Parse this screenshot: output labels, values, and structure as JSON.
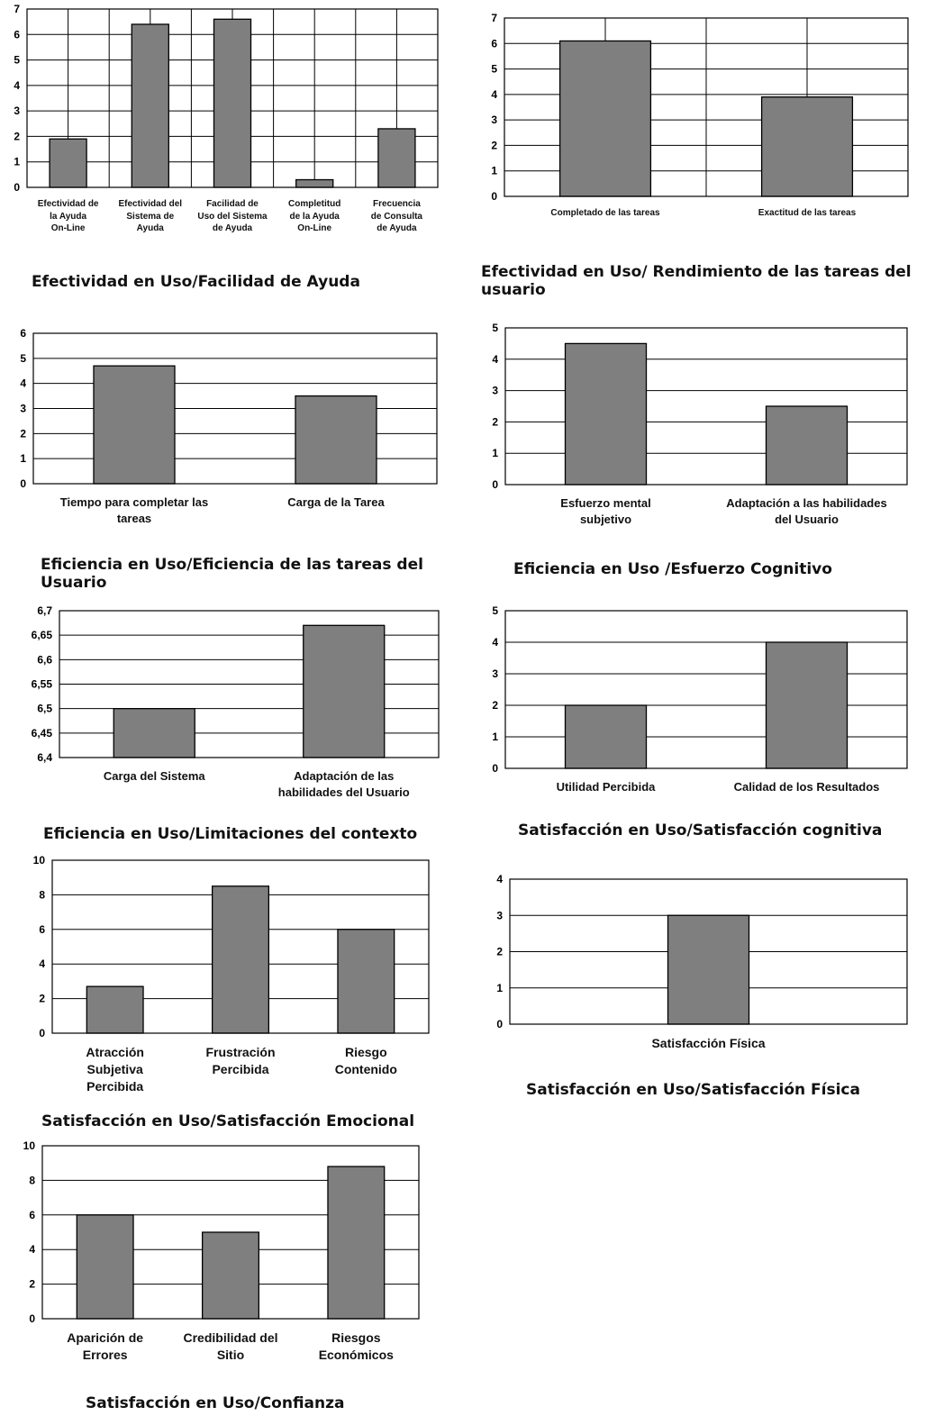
{
  "chart_data": [
    {
      "type": "bar",
      "caption": "Efectividad en Uso/Facilidad de Ayuda",
      "categories": [
        "Efectividad de la Ayuda On-Line",
        "Efectividad del Sistema de Ayuda",
        "Facilidad de Uso del Sistema de Ayuda",
        "Completitud de la Ayuda On-Line",
        "Frecuencia de Consulta de Ayuda"
      ],
      "category_lines": [
        [
          "Efectividad de",
          "la Ayuda",
          "On-Line"
        ],
        [
          "Efectividad del",
          "Sistema de",
          "Ayuda"
        ],
        [
          "Facilidad de",
          "Uso del Sistema",
          "de Ayuda"
        ],
        [
          "Completitud",
          "de la Ayuda",
          "On-Line"
        ],
        [
          "Frecuencia",
          "de Consulta",
          "de Ayuda"
        ]
      ],
      "values": [
        1.9,
        6.4,
        6.6,
        0.3,
        2.3
      ],
      "ylim": [
        0,
        7
      ],
      "yticks": [
        "0",
        "1",
        "2",
        "3",
        "4",
        "5",
        "6",
        "7"
      ],
      "grid": "vertical+horizontal"
    },
    {
      "type": "bar",
      "caption": "Efectividad en Uso/ Rendimiento de las tareas del usuario",
      "categories": [
        "Completado de las tareas",
        "Exactitud de las tareas"
      ],
      "category_lines": [
        [
          "Completado de las tareas"
        ],
        [
          "Exactitud de las tareas"
        ]
      ],
      "values": [
        6.1,
        3.9
      ],
      "ylim": [
        0,
        7
      ],
      "yticks": [
        "0",
        "1",
        "2",
        "3",
        "4",
        "5",
        "6",
        "7"
      ],
      "grid": "vertical+horizontal"
    },
    {
      "type": "bar",
      "caption": "Eficiencia en Uso/Eficiencia de las tareas del Usuario",
      "categories": [
        "Tiempo para completar las tareas",
        "Carga de la Tarea"
      ],
      "category_lines": [
        [
          "Tiempo para completar las",
          "tareas"
        ],
        [
          "Carga de la Tarea"
        ]
      ],
      "values": [
        4.7,
        3.5
      ],
      "ylim": [
        0,
        6
      ],
      "yticks": [
        "0",
        "1",
        "2",
        "3",
        "4",
        "5",
        "6"
      ],
      "grid": "horizontal"
    },
    {
      "type": "bar",
      "caption": "Eficiencia en Uso /Esfuerzo Cognitivo",
      "categories": [
        "Esfuerzo mental subjetivo",
        "Adaptación a las habilidades del Usuario"
      ],
      "category_lines": [
        [
          "Esfuerzo mental",
          "subjetivo"
        ],
        [
          "Adaptación a las habilidades",
          "del Usuario"
        ]
      ],
      "values": [
        4.5,
        2.5
      ],
      "ylim": [
        0,
        5
      ],
      "yticks": [
        "0",
        "1",
        "2",
        "3",
        "4",
        "5"
      ],
      "grid": "horizontal"
    },
    {
      "type": "bar",
      "caption": "Eficiencia en Uso/Limitaciones del contexto",
      "categories": [
        "Carga del Sistema",
        "Adaptación de las habilidades del Usuario"
      ],
      "category_lines": [
        [
          "Carga del Sistema"
        ],
        [
          "Adaptación de las",
          "habilidades del Usuario"
        ]
      ],
      "values": [
        6.5,
        6.67
      ],
      "ylim": [
        6.4,
        6.7
      ],
      "yticks": [
        "6,4",
        "6,45",
        "6,5",
        "6,55",
        "6,6",
        "6,65",
        "6,7"
      ],
      "grid": "horizontal"
    },
    {
      "type": "bar",
      "caption": "Satisfacción en Uso/Satisfacción cognitiva",
      "categories": [
        "Utilidad Percibida",
        "Calidad de los Resultados"
      ],
      "category_lines": [
        [
          "Utilidad Percibida"
        ],
        [
          "Calidad de los Resultados"
        ]
      ],
      "values": [
        2,
        4
      ],
      "ylim": [
        0,
        5
      ],
      "yticks": [
        "0",
        "1",
        "2",
        "3",
        "4",
        "5"
      ],
      "grid": "horizontal"
    },
    {
      "type": "bar",
      "caption": "Satisfacción en Uso/Satisfacción Emocional",
      "categories": [
        "Atracción Subjetiva Percibida",
        "Frustración Percibida",
        "Riesgo Contenido"
      ],
      "category_lines": [
        [
          "Atracción",
          "Subjetiva",
          "Percibida"
        ],
        [
          "Frustración",
          "Percibida"
        ],
        [
          "Riesgo",
          "Contenido"
        ]
      ],
      "values": [
        2.7,
        8.5,
        6
      ],
      "ylim": [
        0,
        10
      ],
      "yticks": [
        "0",
        "2",
        "4",
        "6",
        "8",
        "10"
      ],
      "grid": "horizontal"
    },
    {
      "type": "bar",
      "caption": "Satisfacción en Uso/Satisfacción Física",
      "categories": [
        "Satisfacción Física"
      ],
      "category_lines": [
        [
          "Satisfacción Física"
        ]
      ],
      "values": [
        3
      ],
      "ylim": [
        0,
        4
      ],
      "yticks": [
        "0",
        "1",
        "2",
        "3",
        "4"
      ],
      "grid": "horizontal"
    },
    {
      "type": "bar",
      "caption": "Satisfacción en Uso/Confianza",
      "categories": [
        "Aparición de Errores",
        "Credibilidad del Sitio",
        "Riesgos Económicos"
      ],
      "category_lines": [
        [
          "Aparición de",
          "Errores"
        ],
        [
          "Credibilidad del",
          "Sitio"
        ],
        [
          "Riesgos",
          "Económicos"
        ]
      ],
      "values": [
        6,
        5,
        8.8
      ],
      "ylim": [
        0,
        10
      ],
      "yticks": [
        "0",
        "2",
        "4",
        "6",
        "8",
        "10"
      ],
      "grid": "horizontal"
    }
  ],
  "colors": {
    "bar_fill": "#7f7f7f",
    "lines": "#000000",
    "background": "#ffffff"
  }
}
